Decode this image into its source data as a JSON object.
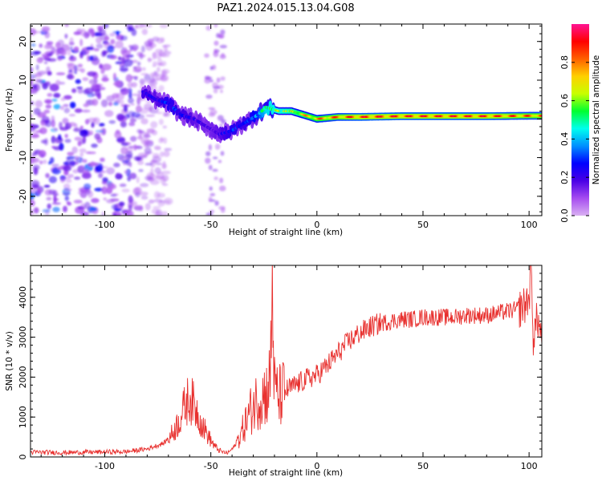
{
  "title": "PAZ1.2024.015.13.04.G08",
  "colors": {
    "snr_line": "#e8312f",
    "colorbar_stops": [
      "#d9b0f2",
      "#a64cf0",
      "#4a00e6",
      "#0000ff",
      "#0090ff",
      "#00ffee",
      "#00ff30",
      "#c8ff00",
      "#ffd000",
      "#ff6000",
      "#ff0000",
      "#ff1493"
    ]
  },
  "chart_data": [
    {
      "type": "heatmap",
      "title": "PAZ1.2024.015.13.04.G08",
      "xlabel": "Height of straight line (km)",
      "ylabel": "Frequency (Hz)",
      "xlim": [
        -135,
        106
      ],
      "ylim": [
        -25,
        24.5
      ],
      "xticks": [
        -100,
        -50,
        0,
        50,
        100
      ],
      "xtick_labels": [
        "-100",
        "-50",
        "0",
        "50",
        "100"
      ],
      "yticks": [
        -20,
        -10,
        0,
        10,
        20
      ],
      "ytick_labels": [
        "-20",
        "-10",
        "0",
        "10",
        "20"
      ],
      "colorbar": {
        "label": "Normalized spectral amplitude",
        "range": [
          0,
          1
        ],
        "ticks": [
          0.0,
          0.2,
          0.4,
          0.6,
          0.8
        ],
        "tick_labels": [
          "0.0",
          "0.2",
          "0.4",
          "0.6",
          "0.8"
        ]
      },
      "ridge": {
        "x": [
          -82,
          -76,
          -70,
          -64,
          -58,
          -52,
          -46,
          -40,
          -34,
          -28,
          -24,
          -18,
          -12,
          -6,
          0,
          10,
          20,
          40,
          60,
          80,
          100,
          106
        ],
        "y": [
          7,
          5,
          4,
          1,
          0,
          -2,
          -4,
          -3,
          -1,
          1,
          3,
          2,
          2,
          1,
          0,
          0.5,
          0.5,
          0.7,
          0.7,
          0.7,
          0.8,
          0.8
        ],
        "amplitude": [
          0.3,
          0.25,
          0.35,
          0.3,
          0.25,
          0.2,
          0.25,
          0.35,
          0.3,
          0.45,
          0.65,
          0.7,
          0.75,
          0.8,
          0.85,
          0.9,
          0.95,
          0.95,
          0.95,
          0.95,
          0.9,
          0.9
        ]
      },
      "noise_region": {
        "x": [
          -135,
          -80
        ],
        "y": [
          -25,
          24.5
        ],
        "amplitude": [
          0.05,
          0.3
        ]
      }
    },
    {
      "type": "line",
      "title": "",
      "xlabel": "Height of straight line (km)",
      "ylabel": "SNR (10 * v/v)",
      "xlim": [
        -135,
        106
      ],
      "ylim": [
        0,
        4800
      ],
      "xticks": [
        -100,
        -50,
        0,
        50,
        100
      ],
      "xtick_labels": [
        "-100",
        "-50",
        "0",
        "50",
        "100"
      ],
      "yticks": [
        0,
        1000,
        2000,
        3000,
        4000
      ],
      "ytick_labels": [
        "0",
        "1000",
        "2000",
        "3000",
        "4000"
      ],
      "series": [
        {
          "x": [
            -135,
            -120,
            -105,
            -90,
            -80,
            -72,
            -68,
            -65,
            -62,
            -60,
            -57,
            -54,
            -51,
            -48,
            -45,
            -42,
            -39,
            -36,
            -33,
            -30,
            -27,
            -24,
            -22,
            -21,
            -20,
            -18,
            -15,
            -10,
            -5,
            0,
            5,
            10,
            15,
            20,
            25,
            30,
            35,
            40,
            45,
            50,
            55,
            60,
            65,
            70,
            75,
            80,
            85,
            90,
            95,
            98,
            100,
            101,
            102,
            104,
            106
          ],
          "y": [
            120,
            110,
            120,
            130,
            200,
            350,
            600,
            900,
            1300,
            1500,
            1200,
            800,
            500,
            250,
            130,
            100,
            250,
            550,
            950,
            1300,
            1500,
            1600,
            1900,
            4400,
            1700,
            1500,
            1650,
            1800,
            1950,
            2050,
            2300,
            2600,
            2900,
            3100,
            3250,
            3350,
            3400,
            3450,
            3450,
            3500,
            3500,
            3500,
            3500,
            3550,
            3550,
            3550,
            3600,
            3650,
            3700,
            3800,
            4000,
            4700,
            3000,
            3500,
            2900
          ]
        }
      ]
    }
  ]
}
